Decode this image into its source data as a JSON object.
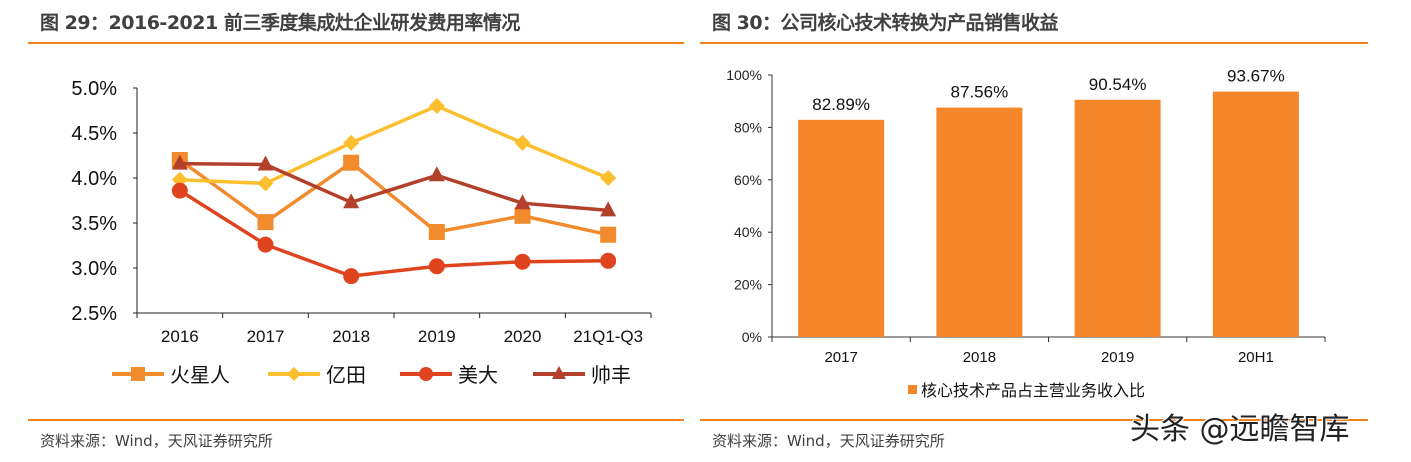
{
  "left": {
    "title": "图 29：2016-2021 前三季度集成灶企业研发费用率情况",
    "source": "资料来源：Wind，天风证券研究所"
  },
  "right": {
    "title": "图 30：公司核心技术转换为产品销售收益",
    "source": "资料来源：Wind，天风证券研究所"
  },
  "watermark": "头条 @远瞻智库",
  "chart_data": [
    {
      "type": "line",
      "categories": [
        "2016",
        "2017",
        "2018",
        "2019",
        "2020",
        "21Q1-Q3"
      ],
      "ylim": [
        2.5,
        5.0
      ],
      "yticks": [
        "2.5%",
        "3.0%",
        "3.5%",
        "4.0%",
        "4.5%",
        "5.0%"
      ],
      "grid": false,
      "legend": "bottom",
      "series": [
        {
          "name": "火星人",
          "marker": "square",
          "color": "#f28a2e",
          "values": [
            4.2,
            3.51,
            4.17,
            3.4,
            3.58,
            3.37
          ]
        },
        {
          "name": "亿田",
          "marker": "diamond",
          "color": "#fcbf2f",
          "values": [
            3.98,
            3.94,
            4.39,
            4.8,
            4.39,
            4.0
          ]
        },
        {
          "name": "美大",
          "marker": "circle",
          "color": "#e0441f",
          "values": [
            3.86,
            3.26,
            2.91,
            3.02,
            3.07,
            3.08
          ]
        },
        {
          "name": "帅丰",
          "marker": "triangle",
          "color": "#b3402a",
          "values": [
            4.16,
            4.15,
            3.73,
            4.03,
            3.72,
            3.64
          ]
        }
      ]
    },
    {
      "type": "bar",
      "categories": [
        "2017",
        "2018",
        "2019",
        "20H1"
      ],
      "ylim": [
        0,
        100
      ],
      "yticks": [
        "0%",
        "20%",
        "40%",
        "60%",
        "80%",
        "100%"
      ],
      "grid": false,
      "legend": "bottom",
      "series": [
        {
          "name": "核心技术产品占主营业务收入比",
          "color": "#f5862a",
          "values": [
            82.89,
            87.56,
            90.54,
            93.67
          ],
          "labels": [
            "82.89%",
            "87.56%",
            "90.54%",
            "93.67%"
          ]
        }
      ]
    }
  ]
}
